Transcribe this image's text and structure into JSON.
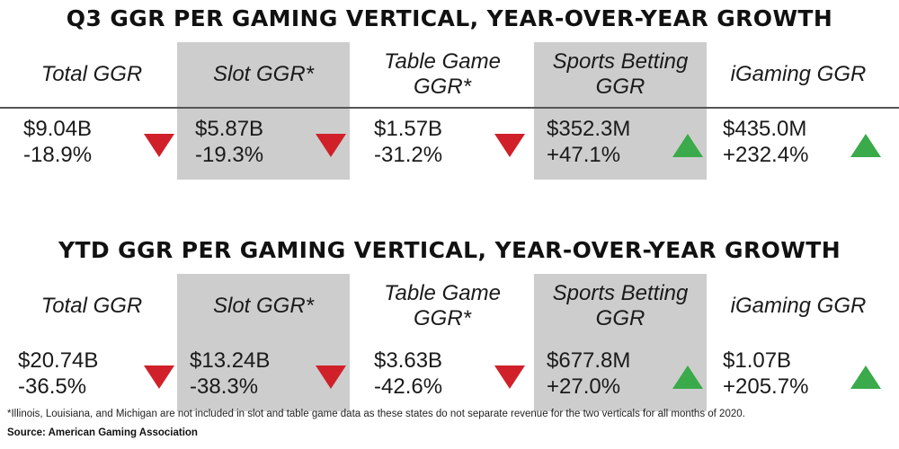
{
  "chart_data": [
    {
      "type": "table",
      "title": "Q3 GGR PER GAMING VERTICAL, YEAR-OVER-YEAR GROWTH",
      "columns": [
        {
          "label": "Total GGR",
          "value": "$9.04B",
          "change": "-18.9%",
          "direction": "down"
        },
        {
          "label": "Slot GGR*",
          "value": "$5.87B",
          "change": "-19.3%",
          "direction": "down"
        },
        {
          "label": "Table Game GGR*",
          "value": "$1.57B",
          "change": "-31.2%",
          "direction": "down"
        },
        {
          "label": "Sports Betting GGR",
          "value": "$352.3M",
          "change": "+47.1%",
          "direction": "up"
        },
        {
          "label": "iGaming GGR",
          "value": "$435.0M",
          "change": "+232.4%",
          "direction": "up"
        }
      ]
    },
    {
      "type": "table",
      "title": "YTD GGR PER GAMING VERTICAL, YEAR-OVER-YEAR GROWTH",
      "columns": [
        {
          "label": "Total GGR",
          "value": "$20.74B",
          "change": "-36.5%",
          "direction": "down"
        },
        {
          "label": "Slot GGR*",
          "value": "$13.24B",
          "change": "-38.3%",
          "direction": "down"
        },
        {
          "label": "Table Game GGR*",
          "value": "$3.63B",
          "change": "-42.6%",
          "direction": "down"
        },
        {
          "label": "Sports Betting GGR",
          "value": "$677.8M",
          "change": "+27.0%",
          "direction": "up"
        },
        {
          "label": "iGaming GGR",
          "value": "$1.07B",
          "change": "+205.7%",
          "direction": "up"
        }
      ]
    }
  ],
  "footnote": "*Illinois, Louisiana, and Michigan are not included in slot and table game data as these states do not separate revenue for the two verticals for all months of 2020.",
  "source": "Source: American Gaming Association",
  "colors": {
    "down": "#d0202a",
    "up": "#3aaa4a",
    "shade": "#cdcdcd"
  }
}
